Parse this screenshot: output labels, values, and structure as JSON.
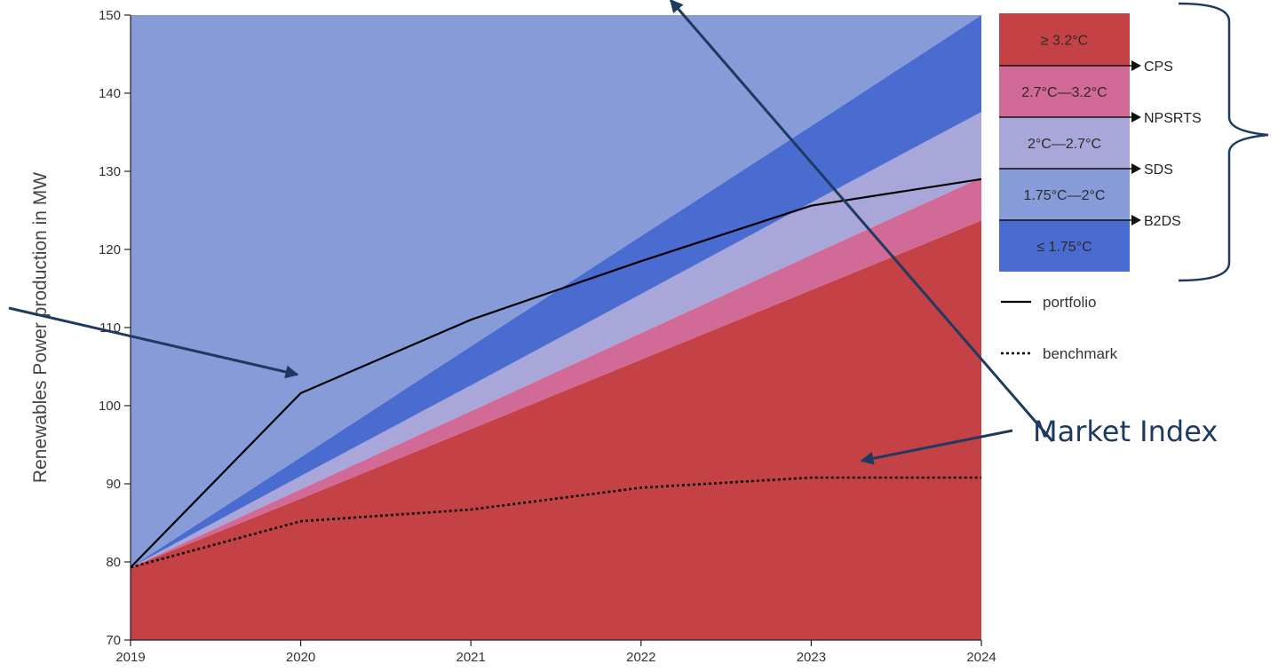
{
  "chart_data": {
    "type": "area",
    "ylabel": "Renewables Power production in MW",
    "xlabel": "",
    "x": [
      2019,
      2020,
      2021,
      2022,
      2023,
      2024
    ],
    "x_ticks": [
      "2019",
      "2020",
      "2021",
      "2022",
      "2023",
      "2024"
    ],
    "xlim": [
      2019,
      2024
    ],
    "ylim": [
      70,
      150
    ],
    "y_ticks": [
      "70",
      "80",
      "90",
      "100",
      "110",
      "120",
      "130",
      "140",
      "150"
    ],
    "grid": false,
    "bands": [
      {
        "label": "≥ 3.2°C",
        "color": "#c44245",
        "lower": 70,
        "upper": [
          79.3,
          88.1,
          97.0,
          105.9,
          114.8,
          123.7
        ]
      },
      {
        "label": "2.7°C—3.2°C",
        "color": "#d16a97",
        "lower_ref": "≥ 3.2°C",
        "upper": [
          79.3,
          89.3,
          99.3,
          109.3,
          119.3,
          129.2
        ]
      },
      {
        "label": "2°C—2.7°C",
        "color": "#a9a6d9",
        "lower_ref": "2.7°C—3.2°C",
        "upper": [
          79.3,
          91.0,
          102.6,
          114.3,
          126.0,
          137.6
        ]
      },
      {
        "label": "≤ 1.75°C",
        "color": "#4a6bd0",
        "lower_ref": "2°C—2.7°C",
        "upper": [
          79.3,
          93.4,
          107.6,
          121.7,
          135.8,
          150.0
        ]
      },
      {
        "label": "1.75°C—2°C",
        "color": "#869bd8",
        "lower_ref": "≤ 1.75°C",
        "upper": 150
      }
    ],
    "series": [
      {
        "name": "portfolio",
        "style": "solid",
        "color": "#000000",
        "values": [
          79.3,
          101.6,
          111.0,
          118.5,
          125.6,
          129.0
        ]
      },
      {
        "name": "benchmark",
        "style": "dotted",
        "color": "#000000",
        "values": [
          79.3,
          85.2,
          86.7,
          89.5,
          90.8,
          90.8
        ]
      }
    ],
    "legend": {
      "placement": "right",
      "bands": [
        {
          "label": "≥ 3.2°C",
          "color": "#c44245"
        },
        {
          "label": "2.7°C—3.2°C",
          "color": "#d16a97"
        },
        {
          "label": "2°C—2.7°C",
          "color": "#a9a6d9"
        },
        {
          "label": "1.75°C—2°C",
          "color": "#869bd8"
        },
        {
          "label": "≤ 1.75°C",
          "color": "#4a6bd0"
        }
      ],
      "scenarios": [
        "CPS",
        "NPSRTS",
        "SDS",
        "B2DS"
      ],
      "lines": [
        {
          "label": "portfolio",
          "style": "solid"
        },
        {
          "label": "benchmark",
          "style": "dotted"
        }
      ]
    },
    "annotations": [
      {
        "text": "Market Index",
        "color": "#1f3a60"
      }
    ]
  }
}
